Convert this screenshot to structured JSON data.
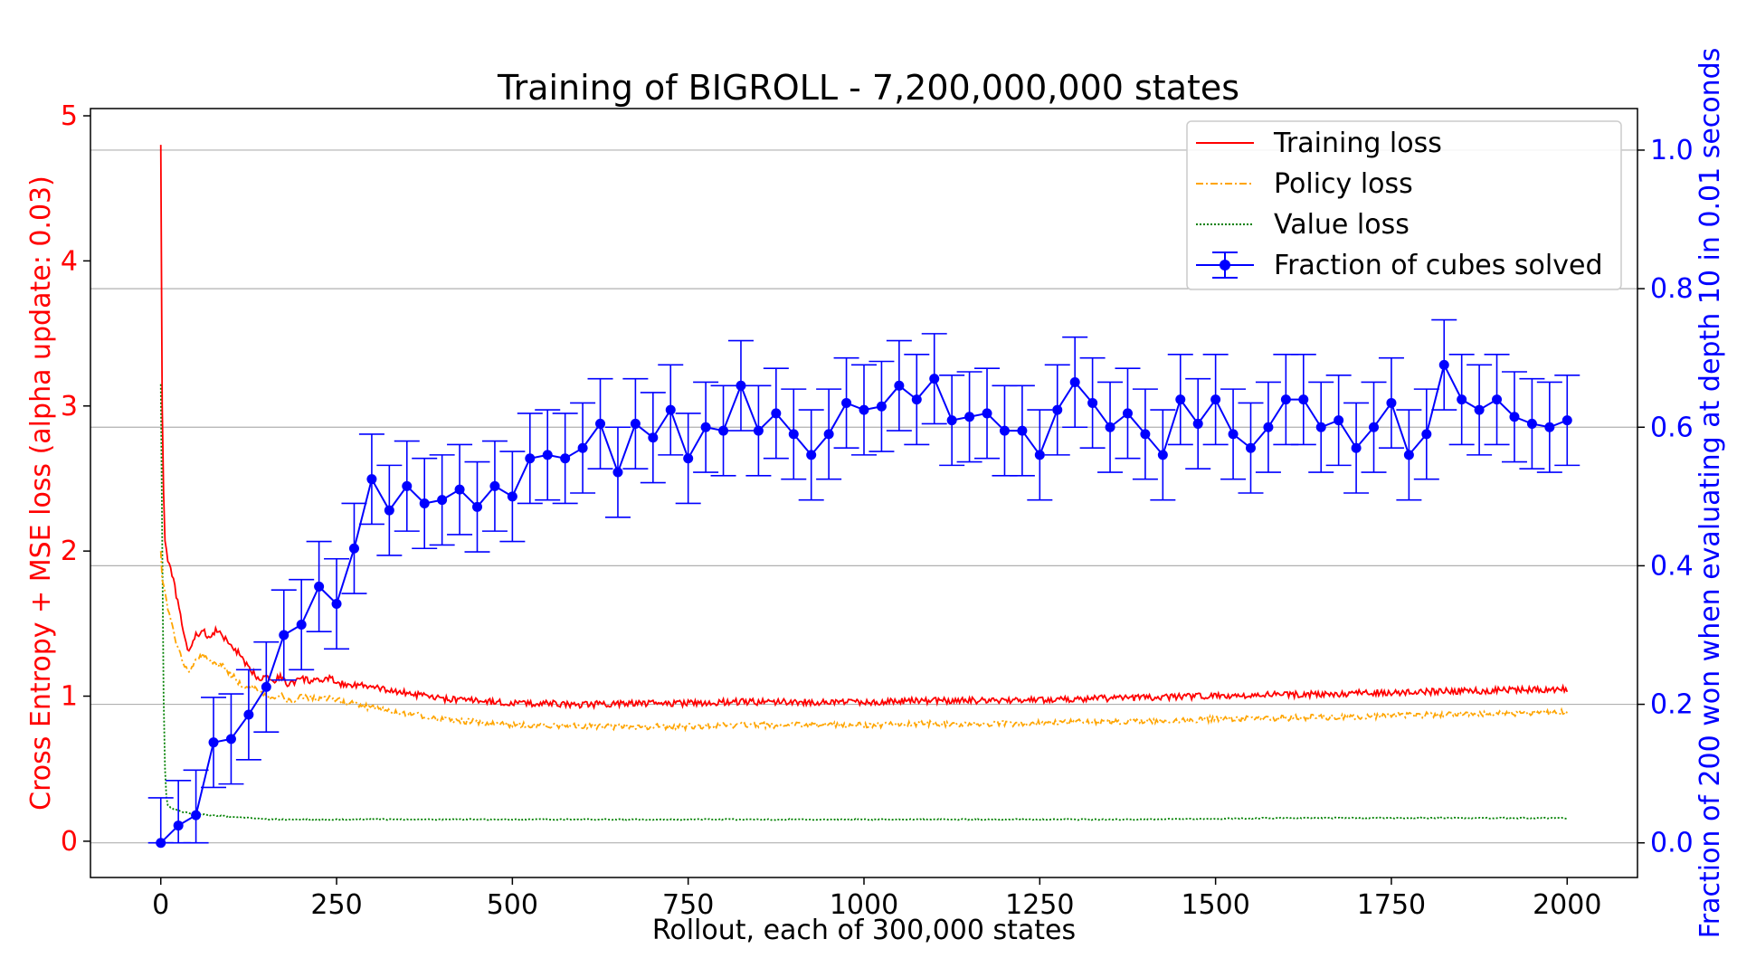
{
  "chart_data": {
    "type": "line",
    "title": "Training of BIGROLL - 7,200,000,000 states",
    "xlabel": "Rollout, each of 300,000 states",
    "ylabel_left": "Cross Entropy + MSE loss (alpha update: 0.03)",
    "ylabel_right": "Fraction of 200 won when evaluating at depth 10 in 0.01 seconds",
    "xlim": [
      -100,
      2100
    ],
    "ylim_left": [
      -0.25,
      5.05
    ],
    "ylim_right": [
      -0.05,
      1.06
    ],
    "x_ticks": [
      0,
      250,
      500,
      750,
      1000,
      1250,
      1500,
      1750,
      2000
    ],
    "y_ticks_left": [
      0,
      1,
      2,
      3,
      4,
      5
    ],
    "y_ticks_right": [
      0.0,
      0.2,
      0.4,
      0.6,
      0.8,
      1.0
    ],
    "grid": "horizontal, right axis",
    "legend_position": "upper right",
    "colors": {
      "training": "#ff0000",
      "policy": "#ffa500",
      "value": "#008000",
      "solved": "#0000ff",
      "grid": "#b0b0b0"
    },
    "series": [
      {
        "name": "Training loss",
        "axis": "left",
        "style": "solid",
        "x": [
          0,
          2,
          5,
          10,
          15,
          20,
          25,
          30,
          35,
          40,
          50,
          60,
          70,
          80,
          90,
          100,
          110,
          120,
          130,
          140,
          150,
          160,
          170,
          180,
          190,
          200,
          220,
          240,
          260,
          280,
          300,
          350,
          400,
          450,
          500,
          550,
          600,
          650,
          700,
          750,
          800,
          900,
          1000,
          1100,
          1200,
          1300,
          1400,
          1500,
          1600,
          1700,
          1800,
          1900,
          2000
        ],
        "y": [
          4.8,
          3.0,
          2.1,
          1.95,
          1.85,
          1.75,
          1.62,
          1.5,
          1.38,
          1.3,
          1.42,
          1.45,
          1.4,
          1.46,
          1.4,
          1.35,
          1.3,
          1.22,
          1.17,
          1.12,
          1.15,
          1.1,
          1.14,
          1.08,
          1.1,
          1.12,
          1.1,
          1.12,
          1.08,
          1.08,
          1.06,
          1.02,
          0.98,
          0.97,
          0.95,
          0.95,
          0.94,
          0.95,
          0.95,
          0.95,
          0.96,
          0.96,
          0.96,
          0.97,
          0.97,
          0.98,
          0.99,
          1.0,
          1.01,
          1.02,
          1.03,
          1.04,
          1.05
        ]
      },
      {
        "name": "Policy loss",
        "axis": "left",
        "style": "dashdot",
        "x": [
          0,
          2,
          5,
          10,
          15,
          20,
          25,
          30,
          35,
          40,
          50,
          60,
          70,
          80,
          90,
          100,
          110,
          120,
          130,
          140,
          150,
          160,
          170,
          180,
          190,
          200,
          220,
          240,
          260,
          280,
          300,
          350,
          400,
          450,
          500,
          550,
          600,
          650,
          700,
          750,
          800,
          900,
          1000,
          1100,
          1200,
          1300,
          1400,
          1500,
          1600,
          1700,
          1800,
          1900,
          2000
        ],
        "y": [
          2.0,
          1.8,
          1.75,
          1.6,
          1.5,
          1.4,
          1.33,
          1.27,
          1.2,
          1.17,
          1.25,
          1.28,
          1.24,
          1.22,
          1.2,
          1.15,
          1.1,
          1.05,
          1.07,
          1.04,
          1.0,
          0.98,
          1.02,
          0.96,
          0.98,
          1.0,
          0.98,
          0.99,
          0.96,
          0.94,
          0.92,
          0.88,
          0.84,
          0.82,
          0.8,
          0.8,
          0.79,
          0.79,
          0.79,
          0.79,
          0.8,
          0.8,
          0.8,
          0.81,
          0.81,
          0.82,
          0.83,
          0.84,
          0.85,
          0.86,
          0.87,
          0.88,
          0.89
        ]
      },
      {
        "name": "Value loss",
        "axis": "left",
        "style": "dotted",
        "x": [
          0,
          2,
          4,
          6,
          8,
          10,
          15,
          20,
          30,
          50,
          70,
          100,
          150,
          200,
          300,
          400,
          500,
          600,
          700,
          800,
          900,
          1000,
          1200,
          1400,
          1600,
          1800,
          2000
        ],
        "y": [
          3.15,
          2.1,
          1.0,
          0.5,
          0.3,
          0.25,
          0.23,
          0.22,
          0.2,
          0.19,
          0.18,
          0.17,
          0.15,
          0.15,
          0.15,
          0.15,
          0.15,
          0.15,
          0.15,
          0.15,
          0.15,
          0.15,
          0.15,
          0.15,
          0.16,
          0.16,
          0.16
        ]
      },
      {
        "name": "Fraction of cubes solved",
        "axis": "right",
        "style": "errorbar",
        "x": [
          0,
          25,
          50,
          75,
          100,
          125,
          150,
          175,
          200,
          225,
          250,
          275,
          300,
          325,
          350,
          375,
          400,
          425,
          450,
          475,
          500,
          525,
          550,
          575,
          600,
          625,
          650,
          675,
          700,
          725,
          750,
          775,
          800,
          825,
          850,
          875,
          900,
          925,
          950,
          975,
          1000,
          1025,
          1050,
          1075,
          1100,
          1125,
          1150,
          1175,
          1200,
          1225,
          1250,
          1275,
          1300,
          1325,
          1350,
          1375,
          1400,
          1425,
          1450,
          1475,
          1500,
          1525,
          1550,
          1575,
          1600,
          1625,
          1650,
          1675,
          1700,
          1725,
          1750,
          1775,
          1800,
          1825,
          1850,
          1875,
          1900,
          1925,
          1950,
          1975,
          2000
        ],
        "y": [
          0.0,
          0.025,
          0.04,
          0.145,
          0.15,
          0.185,
          0.225,
          0.3,
          0.315,
          0.37,
          0.345,
          0.425,
          0.525,
          0.48,
          0.515,
          0.49,
          0.495,
          0.51,
          0.485,
          0.515,
          0.5,
          0.555,
          0.56,
          0.555,
          0.57,
          0.605,
          0.535,
          0.605,
          0.585,
          0.625,
          0.555,
          0.6,
          0.595,
          0.66,
          0.595,
          0.62,
          0.59,
          0.56,
          0.59,
          0.635,
          0.625,
          0.63,
          0.66,
          0.64,
          0.67,
          0.61,
          0.615,
          0.62,
          0.595,
          0.595,
          0.56,
          0.625,
          0.665,
          0.635,
          0.6,
          0.62,
          0.59,
          0.56,
          0.64,
          0.605,
          0.64,
          0.59,
          0.57,
          0.6,
          0.64,
          0.64,
          0.6,
          0.61,
          0.57,
          0.6,
          0.635,
          0.56,
          0.59,
          0.69,
          0.64,
          0.625,
          0.64,
          0.615,
          0.605,
          0.6,
          0.61
        ],
        "error": 0.065
      }
    ]
  }
}
